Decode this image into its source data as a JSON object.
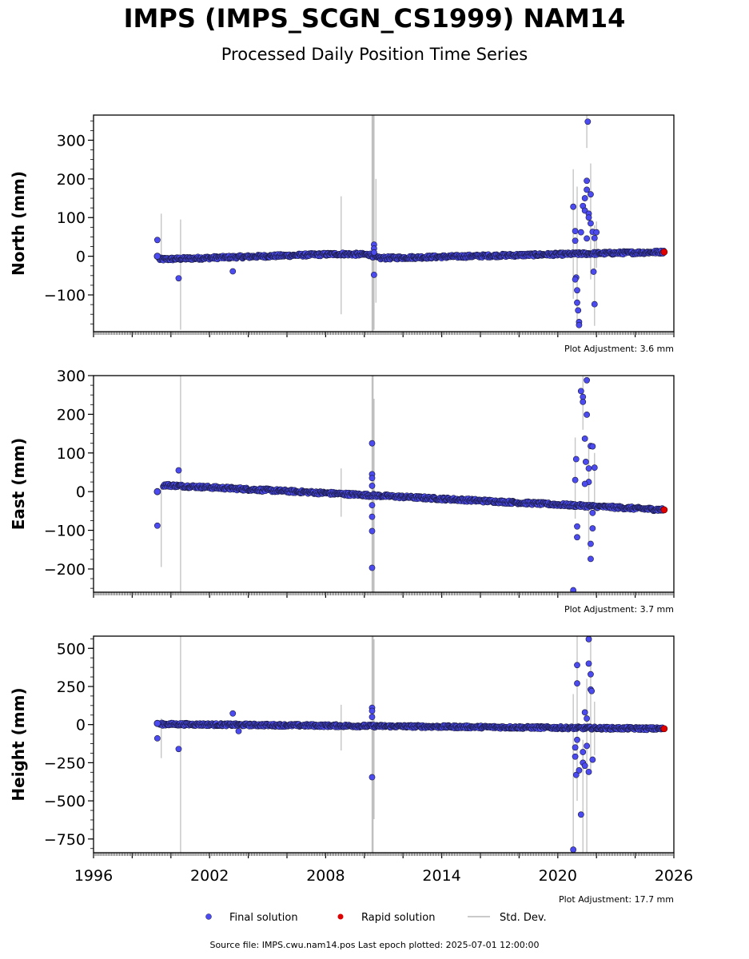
{
  "title": "IMPS (IMPS_SCGN_CS1999) NAM14",
  "subtitle": "Processed Daily Position Time Series",
  "footer": "Source file: IMPS.cwu.nam14.pos  Last epoch plotted: 2025-07-01 12:00:00",
  "colors": {
    "final": "#4b4bf0",
    "final_edge": "#1a1a40",
    "rapid": "#e00000",
    "std": "#b8b8b8"
  },
  "chart_data": {
    "type": "scatter",
    "x_axis": {
      "label": "",
      "range": [
        1996,
        2026
      ],
      "ticks": [
        "1996",
        "2002",
        "2008",
        "2014",
        "2020",
        "2026"
      ]
    },
    "legend": {
      "placement": "bottom",
      "items": [
        "Final solution",
        "Rapid solution",
        "Std. Dev."
      ]
    },
    "panels": [
      {
        "name": "north",
        "ylabel": "North (mm)",
        "ylim": [
          -195,
          365
        ],
        "yticks": [
          300,
          200,
          100,
          0,
          -100
        ],
        "ytick_labels": [
          "300",
          "200",
          "100",
          "0",
          "−100"
        ],
        "adjustment": "Plot Adjustment: 3.6 mm",
        "trend": [
          [
            1999.4,
            -8
          ],
          [
            2008.8,
            6
          ],
          [
            2010.3,
            4
          ],
          [
            2010.7,
            -5
          ],
          [
            2025.5,
            11
          ]
        ],
        "noise": 4,
        "outliers": [
          [
            1999.3,
            42
          ],
          [
            2000.4,
            -57
          ],
          [
            2003.2,
            -39
          ],
          [
            2010.5,
            30
          ],
          [
            2010.5,
            20
          ],
          [
            2010.5,
            -48
          ],
          [
            2010.5,
            10
          ],
          [
            2020.8,
            128
          ],
          [
            2020.9,
            65
          ],
          [
            2020.9,
            40
          ],
          [
            2020.95,
            -55
          ],
          [
            2021.0,
            -88
          ],
          [
            2021.0,
            -120
          ],
          [
            2021.05,
            -140
          ],
          [
            2021.1,
            -170
          ],
          [
            2021.1,
            -178
          ],
          [
            2021.3,
            130
          ],
          [
            2021.4,
            118
          ],
          [
            2021.5,
            195
          ],
          [
            2021.5,
            172
          ],
          [
            2021.6,
            110
          ],
          [
            2021.55,
            348
          ],
          [
            2021.7,
            85
          ],
          [
            2021.8,
            63
          ],
          [
            2021.9,
            47
          ],
          [
            2021.85,
            -40
          ],
          [
            2021.9,
            -124
          ],
          [
            2022.0,
            62
          ],
          [
            2021.4,
            150
          ],
          [
            2021.6,
            100
          ],
          [
            2021.5,
            46
          ],
          [
            2021.7,
            160
          ],
          [
            2020.9,
            -60
          ],
          [
            2021.2,
            62
          ]
        ],
        "std_bars": [
          [
            1999.5,
            -10,
            110
          ],
          [
            2000.5,
            -190,
            95
          ],
          [
            2008.8,
            -150,
            155
          ],
          [
            2010.4,
            -195,
            365
          ],
          [
            2010.5,
            -190,
            365
          ],
          [
            2010.6,
            -120,
            200
          ],
          [
            2020.8,
            -110,
            225
          ],
          [
            2021.0,
            -170,
            180
          ],
          [
            2021.5,
            280,
            365
          ],
          [
            2021.7,
            -60,
            240
          ],
          [
            2021.9,
            -180,
            80
          ],
          [
            2022.0,
            -30,
            90
          ]
        ],
        "rapid_at": [
          2025.5,
          11
        ]
      },
      {
        "name": "east",
        "ylabel": "East (mm)",
        "ylim": [
          -260,
          300
        ],
        "yticks": [
          300,
          200,
          100,
          0,
          -100,
          -200
        ],
        "ytick_labels": [
          "300",
          "200",
          "100",
          "0",
          "−100",
          "−200"
        ],
        "adjustment": "Plot Adjustment: 3.7 mm",
        "trend": [
          [
            1999.6,
            17
          ],
          [
            2025.5,
            -47
          ]
        ],
        "noise": 4,
        "outliers": [
          [
            1999.3,
            -88
          ],
          [
            2000.4,
            55
          ],
          [
            2010.4,
            125
          ],
          [
            2010.4,
            45
          ],
          [
            2010.4,
            35
          ],
          [
            2010.4,
            15
          ],
          [
            2010.4,
            -35
          ],
          [
            2010.4,
            -65
          ],
          [
            2010.4,
            -102
          ],
          [
            2010.4,
            -197
          ],
          [
            2020.8,
            -255
          ],
          [
            2020.9,
            30
          ],
          [
            2020.95,
            84
          ],
          [
            2021.0,
            -90
          ],
          [
            2021.0,
            -118
          ],
          [
            2021.2,
            260
          ],
          [
            2021.3,
            245
          ],
          [
            2021.3,
            232
          ],
          [
            2021.4,
            137
          ],
          [
            2021.45,
            77
          ],
          [
            2021.5,
            288
          ],
          [
            2021.5,
            199
          ],
          [
            2021.6,
            60
          ],
          [
            2021.7,
            118
          ],
          [
            2021.8,
            117
          ],
          [
            2021.8,
            -95
          ],
          [
            2021.7,
            -135
          ],
          [
            2021.7,
            -174
          ],
          [
            2021.9,
            62
          ],
          [
            2021.6,
            25
          ],
          [
            2021.4,
            20
          ],
          [
            2021.8,
            -55
          ]
        ],
        "std_bars": [
          [
            1999.5,
            -195,
            20
          ],
          [
            2000.5,
            -260,
            300
          ],
          [
            2008.8,
            -65,
            60
          ],
          [
            2010.4,
            -260,
            300
          ],
          [
            2010.5,
            -260,
            240
          ],
          [
            2020.9,
            -70,
            140
          ],
          [
            2021.3,
            160,
            300
          ],
          [
            2021.6,
            -150,
            120
          ],
          [
            2021.9,
            -60,
            100
          ]
        ],
        "rapid_at": [
          2025.5,
          -47
        ]
      },
      {
        "name": "height",
        "ylabel": "Height (mm)",
        "ylim": [
          -840,
          580
        ],
        "yticks": [
          500,
          250,
          0,
          -250,
          -500,
          -750
        ],
        "ytick_labels": [
          "500",
          "250",
          "0",
          "−250",
          "−500",
          "−750"
        ],
        "adjustment": "Plot Adjustment: 17.7 mm",
        "trend": [
          [
            1999.4,
            3
          ],
          [
            2025.5,
            -27
          ]
        ],
        "noise": 9,
        "outliers": [
          [
            1999.3,
            -90
          ],
          [
            2000.4,
            -160
          ],
          [
            2003.2,
            73
          ],
          [
            2003.5,
            -43
          ],
          [
            2010.4,
            110
          ],
          [
            2010.4,
            90
          ],
          [
            2010.4,
            50
          ],
          [
            2010.4,
            -345
          ],
          [
            2020.8,
            -820
          ],
          [
            2020.9,
            -210
          ],
          [
            2020.95,
            -330
          ],
          [
            2021.0,
            270
          ],
          [
            2021.0,
            390
          ],
          [
            2021.1,
            -300
          ],
          [
            2021.2,
            -590
          ],
          [
            2021.3,
            -250
          ],
          [
            2021.3,
            -180
          ],
          [
            2021.4,
            -270
          ],
          [
            2021.5,
            40
          ],
          [
            2021.6,
            560
          ],
          [
            2021.6,
            400
          ],
          [
            2021.7,
            330
          ],
          [
            2021.7,
            230
          ],
          [
            2021.75,
            220
          ],
          [
            2021.6,
            -310
          ],
          [
            2021.8,
            -230
          ],
          [
            2021.5,
            -140
          ],
          [
            2020.9,
            -150
          ],
          [
            2021.0,
            -100
          ],
          [
            2021.4,
            80
          ]
        ],
        "std_bars": [
          [
            1999.5,
            -220,
            40
          ],
          [
            2000.5,
            -840,
            580
          ],
          [
            2008.8,
            -170,
            130
          ],
          [
            2010.4,
            -840,
            580
          ],
          [
            2010.5,
            -620,
            560
          ],
          [
            2020.8,
            -840,
            200
          ],
          [
            2021.0,
            -500,
            580
          ],
          [
            2021.3,
            -840,
            -100
          ],
          [
            2021.5,
            -840,
            300
          ],
          [
            2021.7,
            -300,
            580
          ],
          [
            2021.9,
            -200,
            150
          ]
        ],
        "rapid_at": [
          2025.5,
          -27
        ]
      }
    ]
  }
}
